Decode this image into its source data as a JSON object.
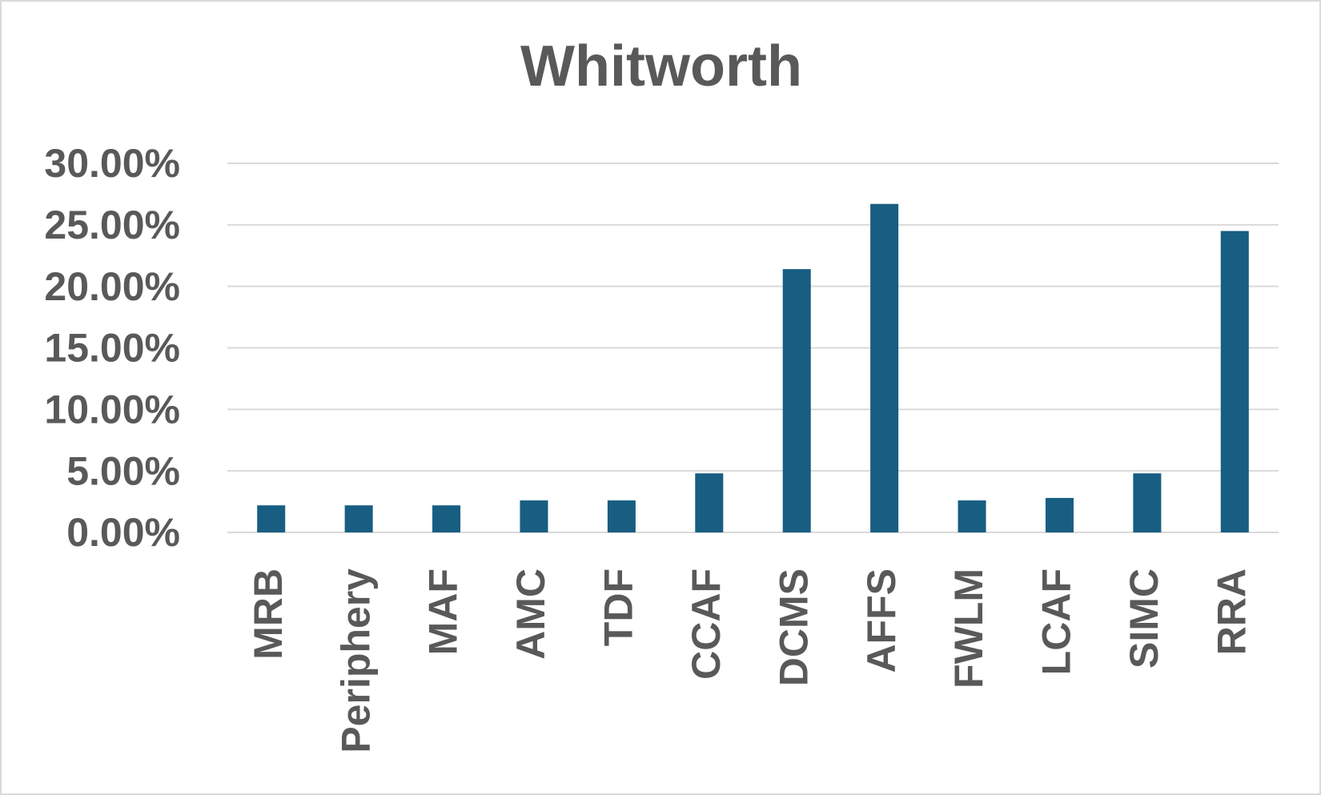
{
  "chart_data": {
    "type": "bar",
    "title": "Whitworth",
    "categories": [
      "MRB",
      "Periphery",
      "MAF",
      "AMC",
      "TDF",
      "CCAF",
      "DCMS",
      "AFFS",
      "FWLM",
      "LCAF",
      "SIMC",
      "RRA"
    ],
    "values": [
      2.2,
      2.2,
      2.2,
      2.6,
      2.6,
      4.8,
      21.4,
      26.7,
      2.6,
      2.8,
      4.8,
      24.5
    ],
    "color": "#175e82",
    "ylim": [
      0,
      30
    ],
    "yticks": [
      {
        "value": 0,
        "label": "0.00%"
      },
      {
        "value": 5,
        "label": "5.00%"
      },
      {
        "value": 10,
        "label": "10.00%"
      },
      {
        "value": 15,
        "label": "15.00%"
      },
      {
        "value": 20,
        "label": "20.00%"
      },
      {
        "value": 25,
        "label": "25.00%"
      },
      {
        "value": 30,
        "label": "30.00%"
      }
    ],
    "grid": true
  }
}
